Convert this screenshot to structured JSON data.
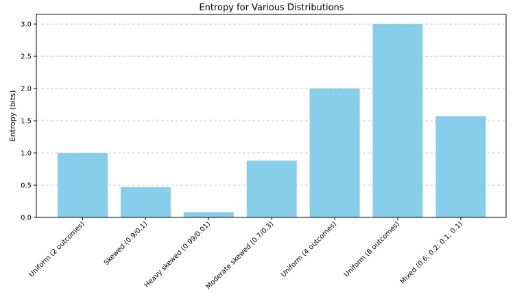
{
  "chart_data": {
    "type": "bar",
    "title": "Entropy for Various Distributions",
    "xlabel": "",
    "ylabel": "Entropy (bits)",
    "categories": [
      "Uniform (2 outcomes)",
      "Skewed (0.9/0.1)",
      "Heavy skewed (0.99/0.01)",
      "Moderate skewed (0.7/0.3)",
      "Uniform (4 outcomes)",
      "Uniform (8 outcomes)",
      "Mixed (0.6; 0.2; 0.1; 0.1)"
    ],
    "values": [
      1.0,
      0.469,
      0.081,
      0.881,
      2.0,
      3.0,
      1.571
    ],
    "ylim": [
      0,
      3.15
    ],
    "yticks": [
      "0.0",
      "0.5",
      "1.0",
      "1.5",
      "2.0",
      "2.5",
      "3.0"
    ],
    "grid": "y-dashed",
    "bar_color": "#87ceeb"
  }
}
